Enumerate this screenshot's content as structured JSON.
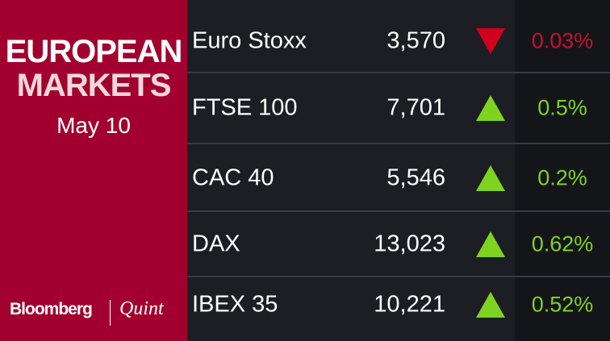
{
  "header": {
    "title_line1": "EUROPEAN",
    "title_line2": "MARKETS",
    "date": "May 10"
  },
  "logo": {
    "brand": "Bloomberg",
    "partner": "Quint"
  },
  "table": {
    "rows": [
      [
        "Euro Stoxx",
        "3,570",
        "0.03%"
      ],
      [
        "FTSE 100",
        "7,701",
        "0.5%"
      ],
      [
        "CAC 40",
        "5,546",
        "0.2%"
      ],
      [
        "DAX",
        "13,023",
        "0.62%"
      ],
      [
        "IBEX 35",
        "10,221",
        "0.52%"
      ]
    ]
  }
}
